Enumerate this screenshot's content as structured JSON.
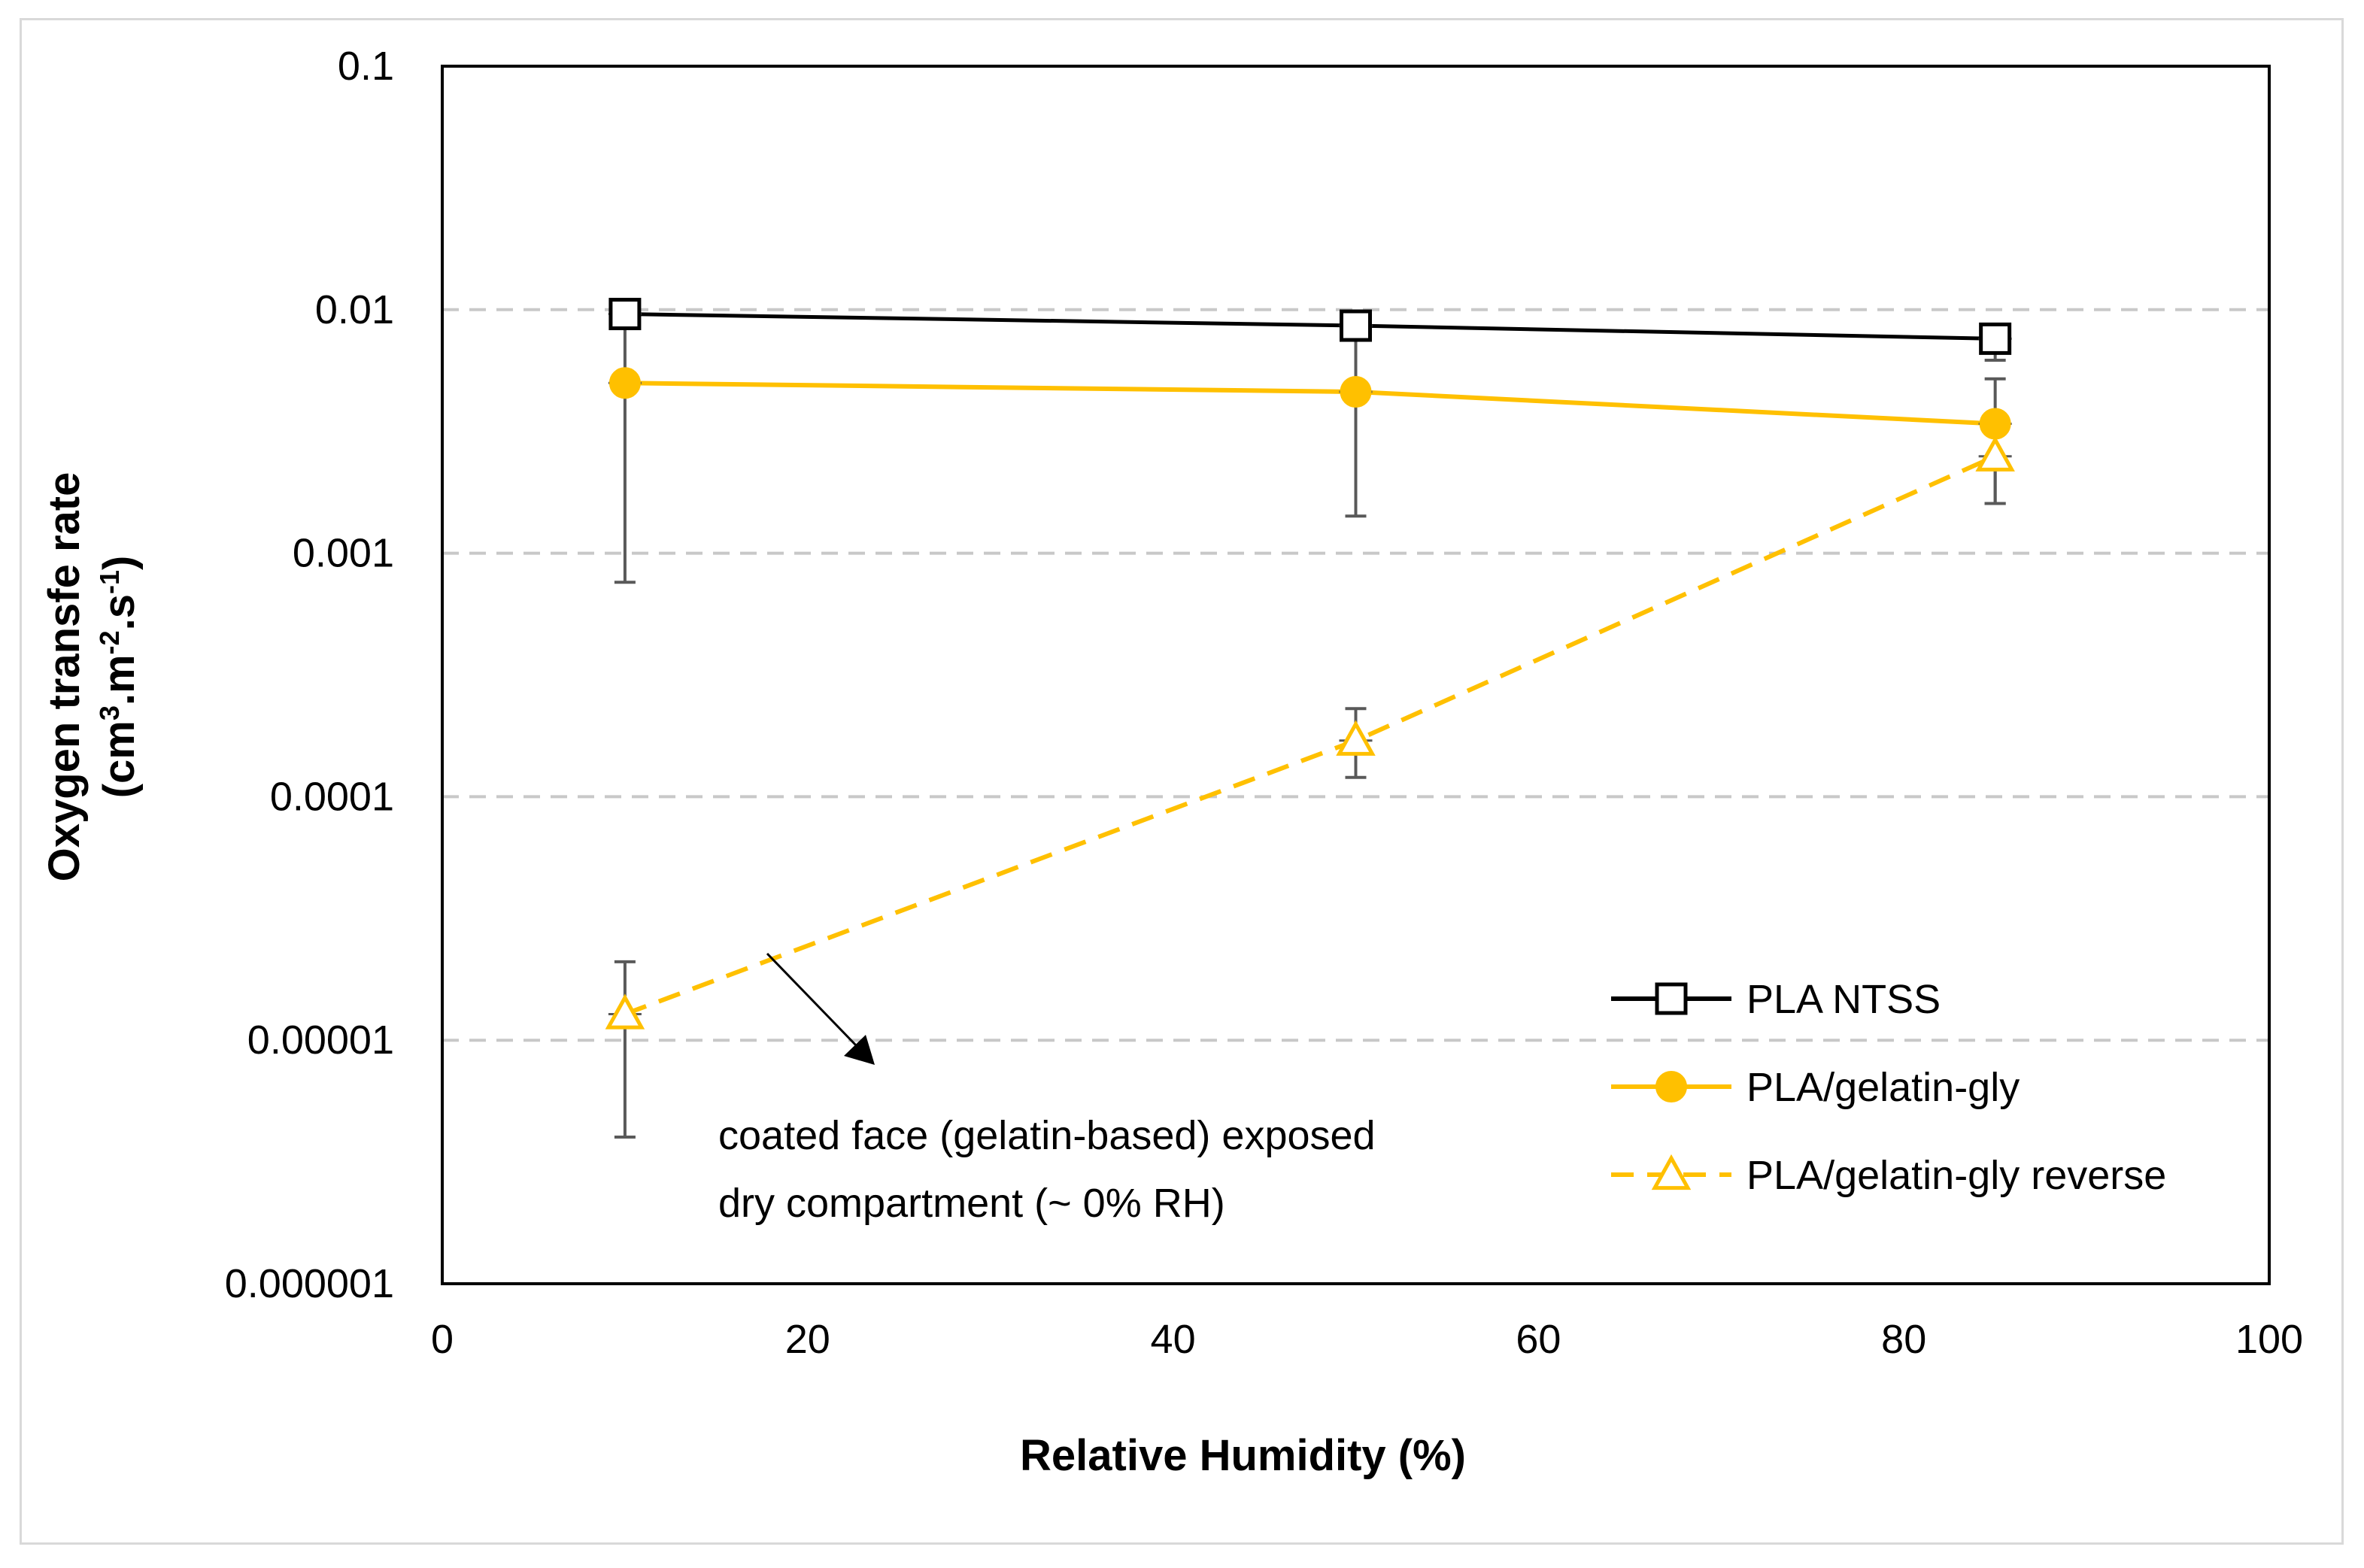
{
  "chart_data": {
    "type": "line",
    "title": "",
    "xlabel": "Relative Humidity (%)",
    "ylabel_line1": "Oxygen transfe rate",
    "ylabel_line2_parts": [
      "(cm",
      "3",
      ".m",
      "-2",
      ".s",
      "-1",
      ")"
    ],
    "xlim": [
      0,
      100
    ],
    "ylim": [
      1e-06,
      0.1
    ],
    "yscale": "log",
    "x_ticks": [
      0,
      20,
      40,
      60,
      80,
      100
    ],
    "x_tick_labels": [
      "0",
      "20",
      "40",
      "60",
      "80",
      "100"
    ],
    "y_ticks": [
      1e-06,
      1e-05,
      0.0001,
      0.001,
      0.01,
      0.1
    ],
    "y_tick_labels": [
      "0.000001",
      "0.00001",
      "0.0001",
      "0.001",
      "0.01",
      "0.1"
    ],
    "grid": "horizontal-dashed",
    "legend_position": "bottom-right",
    "series": [
      {
        "name": "PLA NTSS",
        "color": "#000000",
        "marker": "square-open",
        "dash": "solid",
        "x": [
          10,
          50,
          85
        ],
        "y": [
          0.0096,
          0.0086,
          0.0076
        ],
        "err_low": [
          0.0092,
          0.0078,
          0.0062
        ],
        "err_high": [
          0.0101,
          0.0094,
          0.0087
        ]
      },
      {
        "name": "PLA/gelatin-gly",
        "color": "#FFC000",
        "marker": "circle-filled",
        "dash": "solid",
        "x": [
          10,
          50,
          85
        ],
        "y": [
          0.005,
          0.0046,
          0.0034
        ],
        "err_low": [
          0.00076,
          0.00142,
          0.0016
        ],
        "err_high": [
          0.0091,
          0.0079,
          0.0052
        ]
      },
      {
        "name": "PLA/gelatin-gly reverse",
        "color": "#FFC000",
        "marker": "triangle-open",
        "dash": "dashed",
        "x": [
          10,
          50,
          85
        ],
        "y": [
          1.28e-05,
          0.00017,
          0.0025
        ],
        "err_low": [
          4e-06,
          0.00012,
          0.0016
        ],
        "err_high": [
          2.1e-05,
          0.00023,
          0.0031
        ]
      }
    ],
    "annotation": {
      "lines": [
        "coated face (gelatin-based) exposed",
        "dry compartment (~ 0% RH)"
      ]
    }
  }
}
